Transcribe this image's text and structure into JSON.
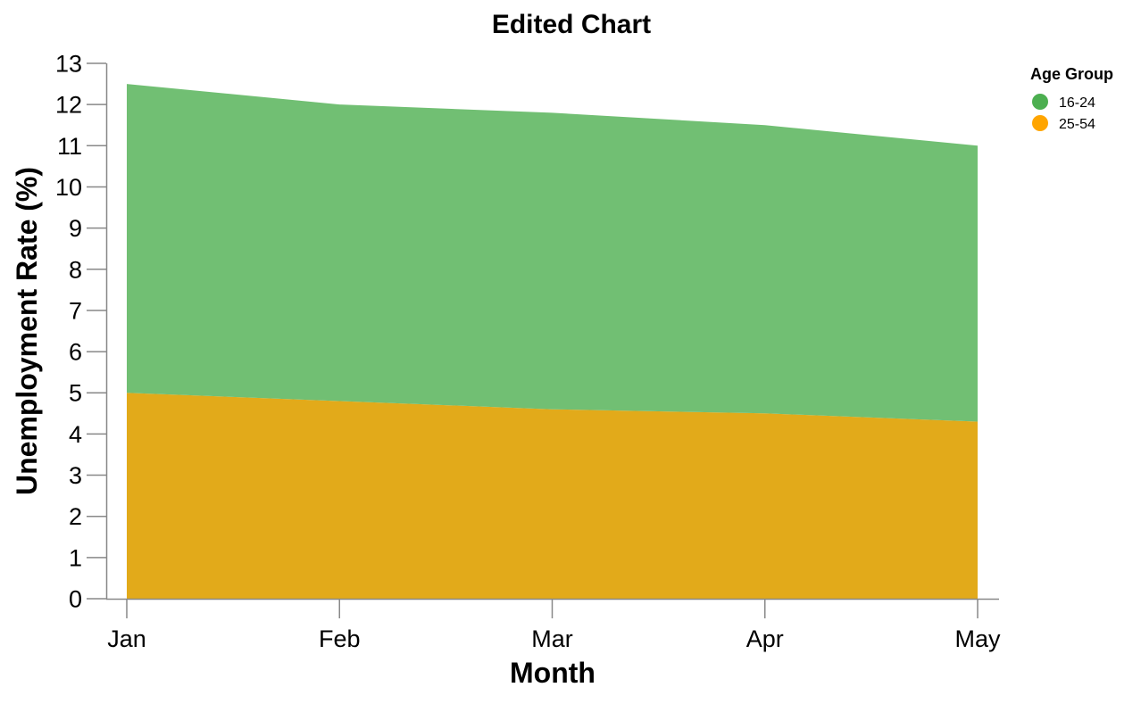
{
  "chart_data": {
    "type": "area",
    "stacked": true,
    "title": "Edited Chart",
    "xlabel": "Month",
    "ylabel": "Unemployment Rate (%)",
    "categories": [
      "Jan",
      "Feb",
      "Mar",
      "Apr",
      "May"
    ],
    "ylim": [
      0,
      13
    ],
    "yticks": [
      "0",
      "1",
      "2",
      "3",
      "4",
      "5",
      "6",
      "7",
      "8",
      "9",
      "10",
      "11",
      "12",
      "13"
    ],
    "grid": false,
    "legend": {
      "title": "Age Group",
      "position": "top-right"
    },
    "series": [
      {
        "name": "25-54",
        "values": [
          5.0,
          4.8,
          4.6,
          4.5,
          4.3
        ],
        "color": "#e2aa1a"
      },
      {
        "name": "16-24",
        "values": [
          7.5,
          7.2,
          7.2,
          7.0,
          6.7
        ],
        "color": "#71bf73"
      }
    ],
    "legend_colors": {
      "16-24": "#4caf50",
      "25-54": "#ffa500"
    },
    "axis_color": "#888888"
  }
}
